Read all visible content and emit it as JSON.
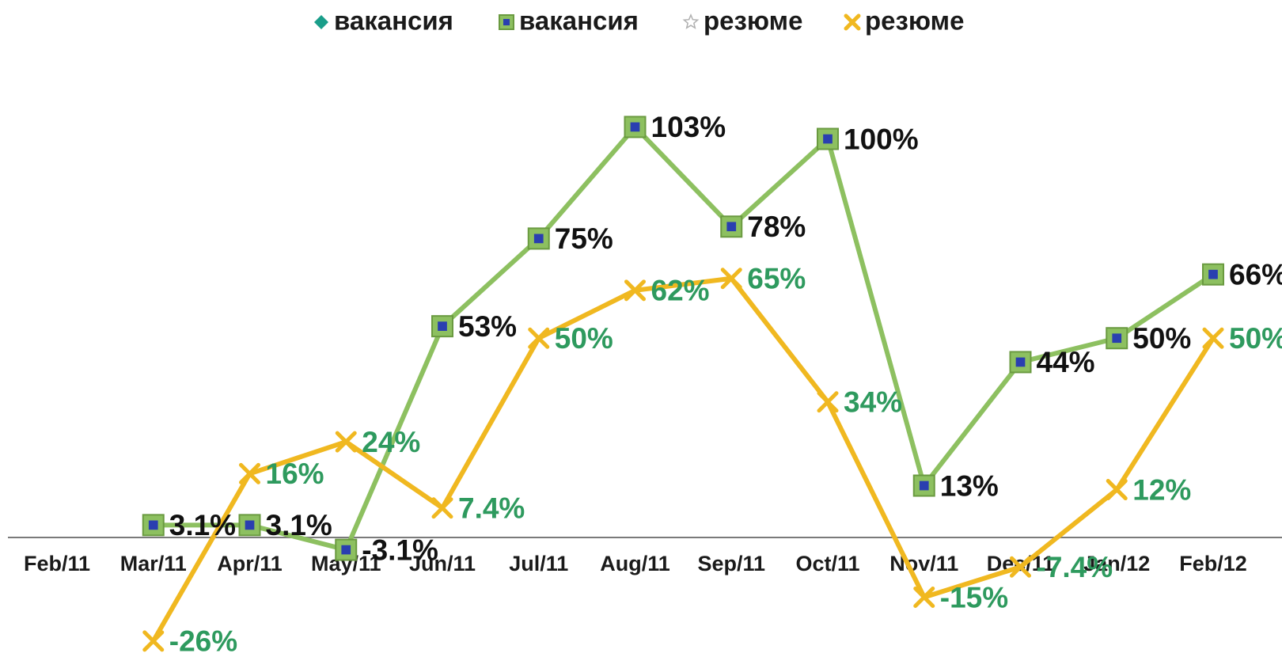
{
  "chart_data": {
    "type": "line",
    "categories": [
      "Feb/11",
      "Mar/11",
      "Apr/11",
      "May/11",
      "Jun/11",
      "Jul/11",
      "Aug/11",
      "Sep/11",
      "Oct/11",
      "Nov/11",
      "Dec/11",
      "Jan/12",
      "Feb/12"
    ],
    "series": [
      {
        "name": "вакансия",
        "color": "#1a9e8a",
        "marker": "diamond",
        "values": [
          null,
          null,
          null,
          null,
          null,
          null,
          null,
          null,
          null,
          null,
          null,
          null,
          null
        ]
      },
      {
        "name": "вакансия",
        "color": "#8dc060",
        "marker": "square",
        "label_color": "#111111",
        "values": [
          null,
          3.1,
          3.1,
          -3.1,
          53,
          75,
          103,
          78,
          100,
          13,
          44,
          50,
          66
        ],
        "value_labels": [
          null,
          "3.1%",
          "3.1%",
          "-3.1%",
          "53%",
          "75%",
          "103%",
          "78%",
          "100%",
          "13%",
          "44%",
          "50%",
          "66%"
        ]
      },
      {
        "name": "резюме",
        "color": "#ffffff",
        "marker": "star",
        "values": [
          null,
          null,
          null,
          null,
          null,
          null,
          null,
          null,
          null,
          null,
          null,
          null,
          null
        ]
      },
      {
        "name": "резюме",
        "color": "#f0b820",
        "marker": "x",
        "label_color": "#2e9a5e",
        "values": [
          null,
          -26,
          16,
          24,
          7.4,
          50,
          62,
          65,
          34,
          -15,
          -7.4,
          12,
          50
        ],
        "value_labels": [
          null,
          "-26%",
          "16%",
          "24%",
          "7.4%",
          "50%",
          "62%",
          "65%",
          "34%",
          "-15%",
          "-7.4%",
          "12%",
          "50%"
        ]
      }
    ],
    "ylim": [
      -30,
      115
    ],
    "legend": "top"
  }
}
